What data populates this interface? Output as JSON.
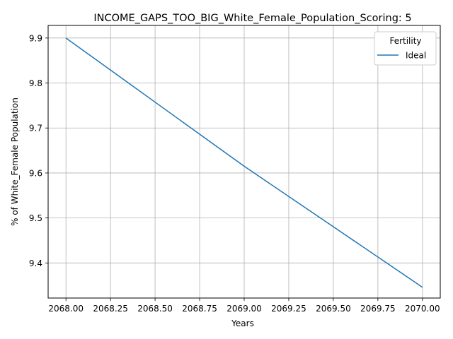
{
  "chart_data": {
    "type": "line",
    "title": "INCOME_GAPS_TOO_BIG_White_Female_Population_Scoring: 5",
    "xlabel": "Years",
    "ylabel": "% of White_Female Population",
    "x_ticks": [
      "2068.00",
      "2068.25",
      "2068.50",
      "2068.75",
      "2069.00",
      "2069.25",
      "2069.50",
      "2069.75",
      "2070.00"
    ],
    "y_ticks": [
      "9.4",
      "9.5",
      "9.6",
      "9.7",
      "9.8",
      "9.9"
    ],
    "xlim": [
      2067.9,
      2070.1
    ],
    "ylim": [
      9.322,
      9.928
    ],
    "grid": true,
    "legend": {
      "title": "Fertility",
      "placement": "top-right"
    },
    "series": [
      {
        "name": "Ideal",
        "color": "#1f77b4",
        "x": [
          2068,
          2069,
          2070
        ],
        "y": [
          9.9,
          9.615,
          9.346
        ]
      }
    ]
  }
}
